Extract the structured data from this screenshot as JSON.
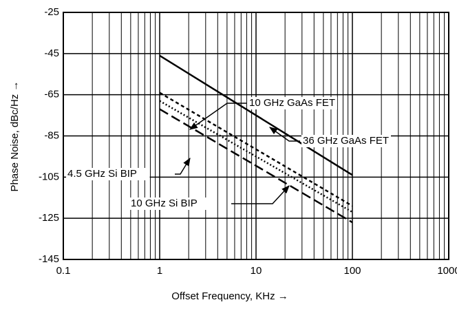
{
  "chart_data": {
    "type": "line",
    "x_label": "Offset Frequency, KHz →",
    "y_label": "Phase Noise, dBc/Hz →",
    "log_x": true,
    "grid": true,
    "xlim": [
      0.1,
      1000
    ],
    "xticks": [
      0.1,
      1,
      10,
      100,
      1000
    ],
    "ylim": [
      -145,
      -25
    ],
    "yticks": [
      -145,
      -125,
      -105,
      -85,
      -65,
      -45,
      -25
    ],
    "x": [
      1,
      100
    ],
    "series": [
      {
        "name": "36 GHz GaAs FET",
        "color": "#000000",
        "dash": "solid",
        "values": [
          -46,
          -104
        ]
      },
      {
        "name": "10 GHz GaAs FET",
        "color": "#000000",
        "dash": "short",
        "values": [
          -64,
          -119
        ]
      },
      {
        "name": "10 GHz Si BIP",
        "color": "#000000",
        "dash": "dotted",
        "values": [
          -68,
          -122
        ]
      },
      {
        "name": "4.5 GHz Si BIP",
        "color": "#000000",
        "dash": "long",
        "values": [
          -72,
          -127
        ]
      }
    ]
  }
}
